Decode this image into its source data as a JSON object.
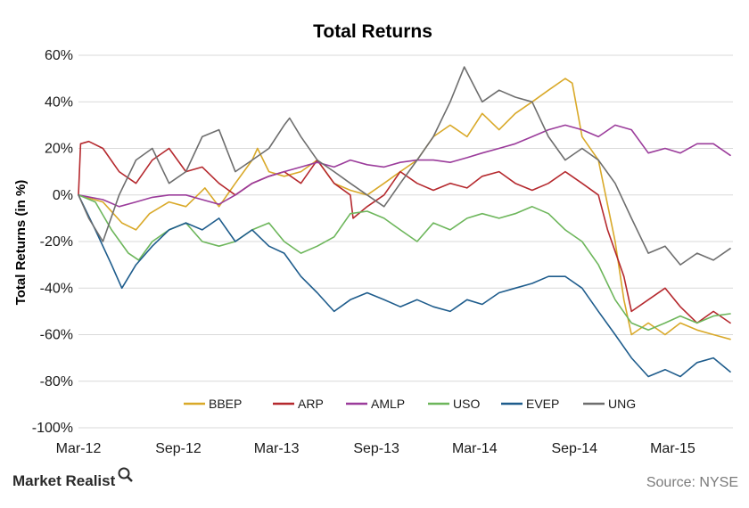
{
  "chart_data": {
    "type": "line",
    "title": "Total Returns",
    "ylabel": "Total Returns (in %)",
    "xlabel": "",
    "ylim": [
      -100,
      60
    ],
    "y_ticks": [
      60,
      40,
      20,
      0,
      -20,
      -40,
      -60,
      -80,
      -100
    ],
    "y_tick_labels": [
      "60%",
      "40%",
      "20%",
      "0%",
      "-20%",
      "-40%",
      "-60%",
      "-80%",
      "-100%"
    ],
    "x_range": [
      "2012-03-01",
      "2015-06-20"
    ],
    "x_ticks": [
      {
        "date": "2012-03-01",
        "label": "Mar-12"
      },
      {
        "date": "2012-09-01",
        "label": "Sep-12"
      },
      {
        "date": "2013-03-01",
        "label": "Mar-13"
      },
      {
        "date": "2013-09-01",
        "label": "Sep-13"
      },
      {
        "date": "2014-03-01",
        "label": "Mar-14"
      },
      {
        "date": "2014-09-01",
        "label": "Sep-14"
      },
      {
        "date": "2015-03-01",
        "label": "Mar-15"
      }
    ],
    "grid": "horizontal",
    "legend_position": "bottom-inside",
    "series": [
      {
        "name": "BBEP",
        "color": "#D9A929",
        "points": [
          [
            "2012-03-01",
            0
          ],
          [
            "2012-04-15",
            -3
          ],
          [
            "2012-05-20",
            -12
          ],
          [
            "2012-06-15",
            -15
          ],
          [
            "2012-07-10",
            -8
          ],
          [
            "2012-08-15",
            -3
          ],
          [
            "2012-09-15",
            -5
          ],
          [
            "2012-10-20",
            3
          ],
          [
            "2012-11-15",
            -5
          ],
          [
            "2012-12-15",
            5
          ],
          [
            "2013-01-15",
            15
          ],
          [
            "2013-01-25",
            20
          ],
          [
            "2013-02-15",
            10
          ],
          [
            "2013-03-15",
            8
          ],
          [
            "2013-04-15",
            10
          ],
          [
            "2013-05-15",
            15
          ],
          [
            "2013-06-15",
            5
          ],
          [
            "2013-07-15",
            2
          ],
          [
            "2013-08-15",
            0
          ],
          [
            "2013-09-15",
            5
          ],
          [
            "2013-10-15",
            10
          ],
          [
            "2013-11-15",
            15
          ],
          [
            "2013-12-15",
            25
          ],
          [
            "2014-01-15",
            30
          ],
          [
            "2014-02-15",
            25
          ],
          [
            "2014-03-15",
            35
          ],
          [
            "2014-04-15",
            28
          ],
          [
            "2014-05-15",
            35
          ],
          [
            "2014-06-15",
            40
          ],
          [
            "2014-07-15",
            45
          ],
          [
            "2014-08-15",
            50
          ],
          [
            "2014-08-28",
            48
          ],
          [
            "2014-09-15",
            25
          ],
          [
            "2014-10-15",
            15
          ],
          [
            "2014-11-15",
            -20
          ],
          [
            "2014-12-01",
            -45
          ],
          [
            "2014-12-15",
            -60
          ],
          [
            "2015-01-15",
            -55
          ],
          [
            "2015-02-15",
            -60
          ],
          [
            "2015-03-15",
            -55
          ],
          [
            "2015-04-15",
            -58
          ],
          [
            "2015-05-15",
            -60
          ],
          [
            "2015-06-15",
            -62
          ]
        ]
      },
      {
        "name": "ARP",
        "color": "#B5292E",
        "points": [
          [
            "2012-03-01",
            0
          ],
          [
            "2012-03-05",
            22
          ],
          [
            "2012-03-20",
            23
          ],
          [
            "2012-04-15",
            20
          ],
          [
            "2012-05-15",
            10
          ],
          [
            "2012-06-15",
            5
          ],
          [
            "2012-07-15",
            15
          ],
          [
            "2012-08-15",
            20
          ],
          [
            "2012-09-15",
            10
          ],
          [
            "2012-10-15",
            12
          ],
          [
            "2012-11-15",
            5
          ],
          [
            "2012-12-15",
            0
          ],
          [
            "2013-01-15",
            5
          ],
          [
            "2013-02-15",
            8
          ],
          [
            "2013-03-15",
            10
          ],
          [
            "2013-04-15",
            5
          ],
          [
            "2013-05-15",
            15
          ],
          [
            "2013-06-15",
            5
          ],
          [
            "2013-07-15",
            0
          ],
          [
            "2013-07-20",
            -10
          ],
          [
            "2013-08-15",
            -5
          ],
          [
            "2013-09-15",
            0
          ],
          [
            "2013-10-15",
            10
          ],
          [
            "2013-11-15",
            5
          ],
          [
            "2013-12-15",
            2
          ],
          [
            "2014-01-15",
            5
          ],
          [
            "2014-02-15",
            3
          ],
          [
            "2014-03-15",
            8
          ],
          [
            "2014-04-15",
            10
          ],
          [
            "2014-05-15",
            5
          ],
          [
            "2014-06-15",
            2
          ],
          [
            "2014-07-15",
            5
          ],
          [
            "2014-08-15",
            10
          ],
          [
            "2014-09-15",
            5
          ],
          [
            "2014-10-15",
            0
          ],
          [
            "2014-11-01",
            -15
          ],
          [
            "2014-12-01",
            -35
          ],
          [
            "2014-12-15",
            -50
          ],
          [
            "2015-01-15",
            -45
          ],
          [
            "2015-02-15",
            -40
          ],
          [
            "2015-03-15",
            -48
          ],
          [
            "2015-04-15",
            -55
          ],
          [
            "2015-05-15",
            -50
          ],
          [
            "2015-06-15",
            -55
          ]
        ]
      },
      {
        "name": "AMLP",
        "color": "#9B3C9B",
        "points": [
          [
            "2012-03-01",
            0
          ],
          [
            "2012-04-15",
            -2
          ],
          [
            "2012-05-15",
            -5
          ],
          [
            "2012-06-15",
            -3
          ],
          [
            "2012-07-15",
            -1
          ],
          [
            "2012-08-15",
            0
          ],
          [
            "2012-09-15",
            0
          ],
          [
            "2012-10-15",
            -2
          ],
          [
            "2012-11-15",
            -4
          ],
          [
            "2012-12-15",
            0
          ],
          [
            "2013-01-15",
            5
          ],
          [
            "2013-02-15",
            8
          ],
          [
            "2013-03-15",
            10
          ],
          [
            "2013-04-15",
            12
          ],
          [
            "2013-05-15",
            14
          ],
          [
            "2013-06-15",
            12
          ],
          [
            "2013-07-15",
            15
          ],
          [
            "2013-08-15",
            13
          ],
          [
            "2013-09-15",
            12
          ],
          [
            "2013-10-15",
            14
          ],
          [
            "2013-11-15",
            15
          ],
          [
            "2013-12-15",
            15
          ],
          [
            "2014-01-15",
            14
          ],
          [
            "2014-02-15",
            16
          ],
          [
            "2014-03-15",
            18
          ],
          [
            "2014-04-15",
            20
          ],
          [
            "2014-05-15",
            22
          ],
          [
            "2014-06-15",
            25
          ],
          [
            "2014-07-15",
            28
          ],
          [
            "2014-08-15",
            30
          ],
          [
            "2014-09-15",
            28
          ],
          [
            "2014-10-15",
            25
          ],
          [
            "2014-11-15",
            30
          ],
          [
            "2014-12-15",
            28
          ],
          [
            "2015-01-15",
            18
          ],
          [
            "2015-02-15",
            20
          ],
          [
            "2015-03-15",
            18
          ],
          [
            "2015-04-15",
            22
          ],
          [
            "2015-05-15",
            22
          ],
          [
            "2015-06-15",
            17
          ]
        ]
      },
      {
        "name": "USO",
        "color": "#6DB65B",
        "points": [
          [
            "2012-03-01",
            0
          ],
          [
            "2012-04-01",
            -3
          ],
          [
            "2012-05-01",
            -15
          ],
          [
            "2012-06-01",
            -25
          ],
          [
            "2012-06-20",
            -28
          ],
          [
            "2012-07-15",
            -20
          ],
          [
            "2012-08-15",
            -15
          ],
          [
            "2012-09-15",
            -12
          ],
          [
            "2012-10-15",
            -20
          ],
          [
            "2012-11-15",
            -22
          ],
          [
            "2012-12-15",
            -20
          ],
          [
            "2013-01-15",
            -15
          ],
          [
            "2013-02-15",
            -12
          ],
          [
            "2013-03-15",
            -20
          ],
          [
            "2013-04-15",
            -25
          ],
          [
            "2013-05-15",
            -22
          ],
          [
            "2013-06-15",
            -18
          ],
          [
            "2013-07-15",
            -8
          ],
          [
            "2013-08-15",
            -7
          ],
          [
            "2013-09-15",
            -10
          ],
          [
            "2013-10-15",
            -15
          ],
          [
            "2013-11-15",
            -20
          ],
          [
            "2013-12-15",
            -12
          ],
          [
            "2014-01-15",
            -15
          ],
          [
            "2014-02-15",
            -10
          ],
          [
            "2014-03-15",
            -8
          ],
          [
            "2014-04-15",
            -10
          ],
          [
            "2014-05-15",
            -8
          ],
          [
            "2014-06-15",
            -5
          ],
          [
            "2014-07-15",
            -8
          ],
          [
            "2014-08-15",
            -15
          ],
          [
            "2014-09-15",
            -20
          ],
          [
            "2014-10-15",
            -30
          ],
          [
            "2014-11-15",
            -45
          ],
          [
            "2014-12-15",
            -55
          ],
          [
            "2015-01-15",
            -58
          ],
          [
            "2015-02-15",
            -55
          ],
          [
            "2015-03-15",
            -52
          ],
          [
            "2015-04-15",
            -55
          ],
          [
            "2015-05-15",
            -52
          ],
          [
            "2015-06-15",
            -51
          ]
        ]
      },
      {
        "name": "EVEP",
        "color": "#1E5C8C",
        "points": [
          [
            "2012-03-01",
            0
          ],
          [
            "2012-04-01",
            -15
          ],
          [
            "2012-05-01",
            -30
          ],
          [
            "2012-05-20",
            -40
          ],
          [
            "2012-06-15",
            -30
          ],
          [
            "2012-07-15",
            -22
          ],
          [
            "2012-08-15",
            -15
          ],
          [
            "2012-09-15",
            -12
          ],
          [
            "2012-10-15",
            -15
          ],
          [
            "2012-11-15",
            -10
          ],
          [
            "2012-12-15",
            -20
          ],
          [
            "2013-01-15",
            -15
          ],
          [
            "2013-02-15",
            -22
          ],
          [
            "2013-03-15",
            -25
          ],
          [
            "2013-04-15",
            -35
          ],
          [
            "2013-05-15",
            -42
          ],
          [
            "2013-06-15",
            -50
          ],
          [
            "2013-07-15",
            -45
          ],
          [
            "2013-08-15",
            -42
          ],
          [
            "2013-09-15",
            -45
          ],
          [
            "2013-10-15",
            -48
          ],
          [
            "2013-11-15",
            -45
          ],
          [
            "2013-12-15",
            -48
          ],
          [
            "2014-01-15",
            -50
          ],
          [
            "2014-02-15",
            -45
          ],
          [
            "2014-03-15",
            -47
          ],
          [
            "2014-04-15",
            -42
          ],
          [
            "2014-05-15",
            -40
          ],
          [
            "2014-06-15",
            -38
          ],
          [
            "2014-07-15",
            -35
          ],
          [
            "2014-08-15",
            -35
          ],
          [
            "2014-09-15",
            -40
          ],
          [
            "2014-10-15",
            -50
          ],
          [
            "2014-11-15",
            -60
          ],
          [
            "2014-12-15",
            -70
          ],
          [
            "2015-01-15",
            -78
          ],
          [
            "2015-02-15",
            -75
          ],
          [
            "2015-03-15",
            -78
          ],
          [
            "2015-04-15",
            -72
          ],
          [
            "2015-05-15",
            -70
          ],
          [
            "2015-06-15",
            -76
          ]
        ]
      },
      {
        "name": "UNG",
        "color": "#6E6E6E",
        "points": [
          [
            "2012-03-01",
            0
          ],
          [
            "2012-03-20",
            -10
          ],
          [
            "2012-04-15",
            -20
          ],
          [
            "2012-05-15",
            0
          ],
          [
            "2012-06-15",
            15
          ],
          [
            "2012-07-15",
            20
          ],
          [
            "2012-08-15",
            5
          ],
          [
            "2012-09-15",
            10
          ],
          [
            "2012-10-15",
            25
          ],
          [
            "2012-11-15",
            28
          ],
          [
            "2012-12-15",
            10
          ],
          [
            "2013-01-15",
            15
          ],
          [
            "2013-02-15",
            20
          ],
          [
            "2013-03-15",
            30
          ],
          [
            "2013-03-25",
            33
          ],
          [
            "2013-04-15",
            25
          ],
          [
            "2013-05-15",
            15
          ],
          [
            "2013-06-15",
            10
          ],
          [
            "2013-07-15",
            5
          ],
          [
            "2013-08-15",
            0
          ],
          [
            "2013-09-15",
            -5
          ],
          [
            "2013-10-15",
            5
          ],
          [
            "2013-11-15",
            15
          ],
          [
            "2013-12-15",
            25
          ],
          [
            "2014-01-15",
            40
          ],
          [
            "2014-02-10",
            55
          ],
          [
            "2014-03-15",
            40
          ],
          [
            "2014-04-15",
            45
          ],
          [
            "2014-05-15",
            42
          ],
          [
            "2014-06-15",
            40
          ],
          [
            "2014-07-15",
            25
          ],
          [
            "2014-08-15",
            15
          ],
          [
            "2014-09-15",
            20
          ],
          [
            "2014-10-15",
            15
          ],
          [
            "2014-11-15",
            5
          ],
          [
            "2014-12-15",
            -10
          ],
          [
            "2015-01-15",
            -25
          ],
          [
            "2015-02-15",
            -22
          ],
          [
            "2015-03-15",
            -30
          ],
          [
            "2015-04-15",
            -25
          ],
          [
            "2015-05-15",
            -28
          ],
          [
            "2015-06-15",
            -23
          ]
        ]
      }
    ]
  },
  "footer": {
    "brand": "Market Realist",
    "source": "Source: NYSE"
  }
}
